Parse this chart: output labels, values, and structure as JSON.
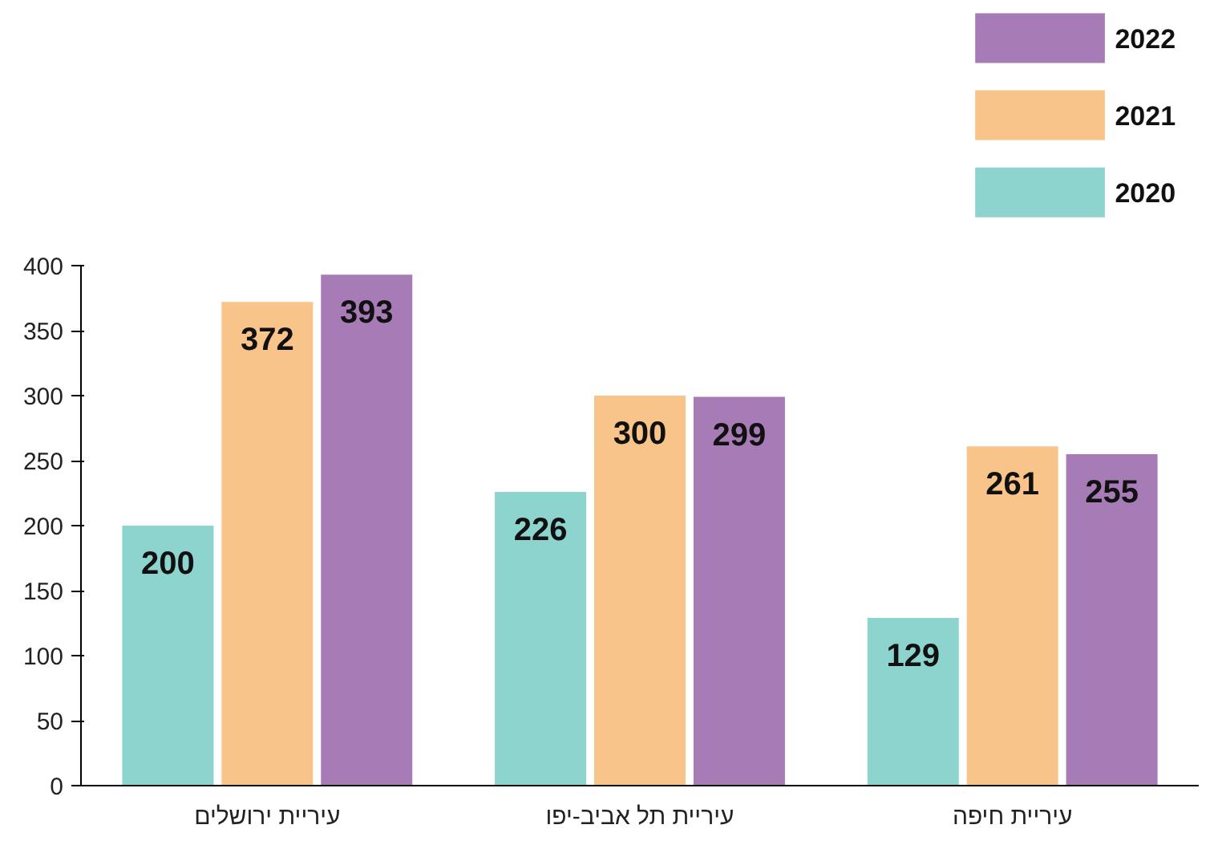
{
  "chart_data": {
    "type": "bar",
    "categories": [
      "עיריית ירושלים",
      "עיריית תל אביב-יפו",
      "עיריית חיפה"
    ],
    "series": [
      {
        "name": "2020",
        "color": "#8dd3ce",
        "values": [
          200,
          226,
          129
        ]
      },
      {
        "name": "2021",
        "color": "#f9c489",
        "values": [
          372,
          300,
          261
        ]
      },
      {
        "name": "2022",
        "color": "#a67bb6",
        "values": [
          393,
          299,
          255
        ]
      }
    ],
    "ylim": [
      0,
      400
    ],
    "yticks": [
      0,
      50,
      100,
      150,
      200,
      250,
      300,
      350,
      400
    ],
    "grid": false,
    "legend": "top right",
    "data_labels": true
  }
}
